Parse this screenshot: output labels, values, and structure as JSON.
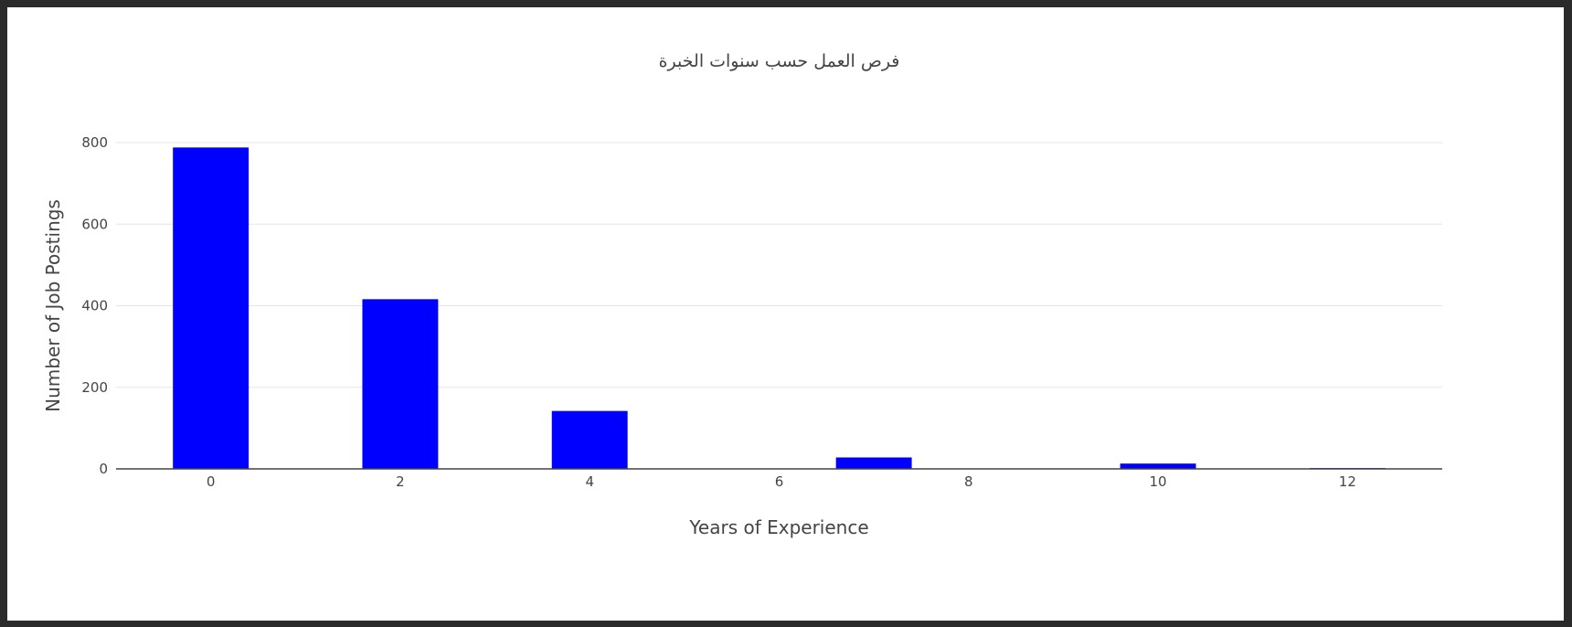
{
  "chart_data": {
    "type": "bar",
    "title": "فرص العمل حسب سنوات الخبرة",
    "xlabel": "Years of Experience",
    "ylabel": "Number of Job Postings",
    "x_ticks": [
      "0",
      "2",
      "4",
      "6",
      "8",
      "10",
      "12"
    ],
    "y_ticks": [
      "0",
      "200",
      "400",
      "600",
      "800"
    ],
    "xlim": [
      -1,
      13
    ],
    "ylim": [
      0,
      800
    ],
    "grid": true,
    "bar_color": "#0000ff",
    "x": [
      0,
      2,
      4,
      7,
      10,
      12
    ],
    "values": [
      788,
      416,
      142,
      28,
      13,
      2
    ]
  }
}
